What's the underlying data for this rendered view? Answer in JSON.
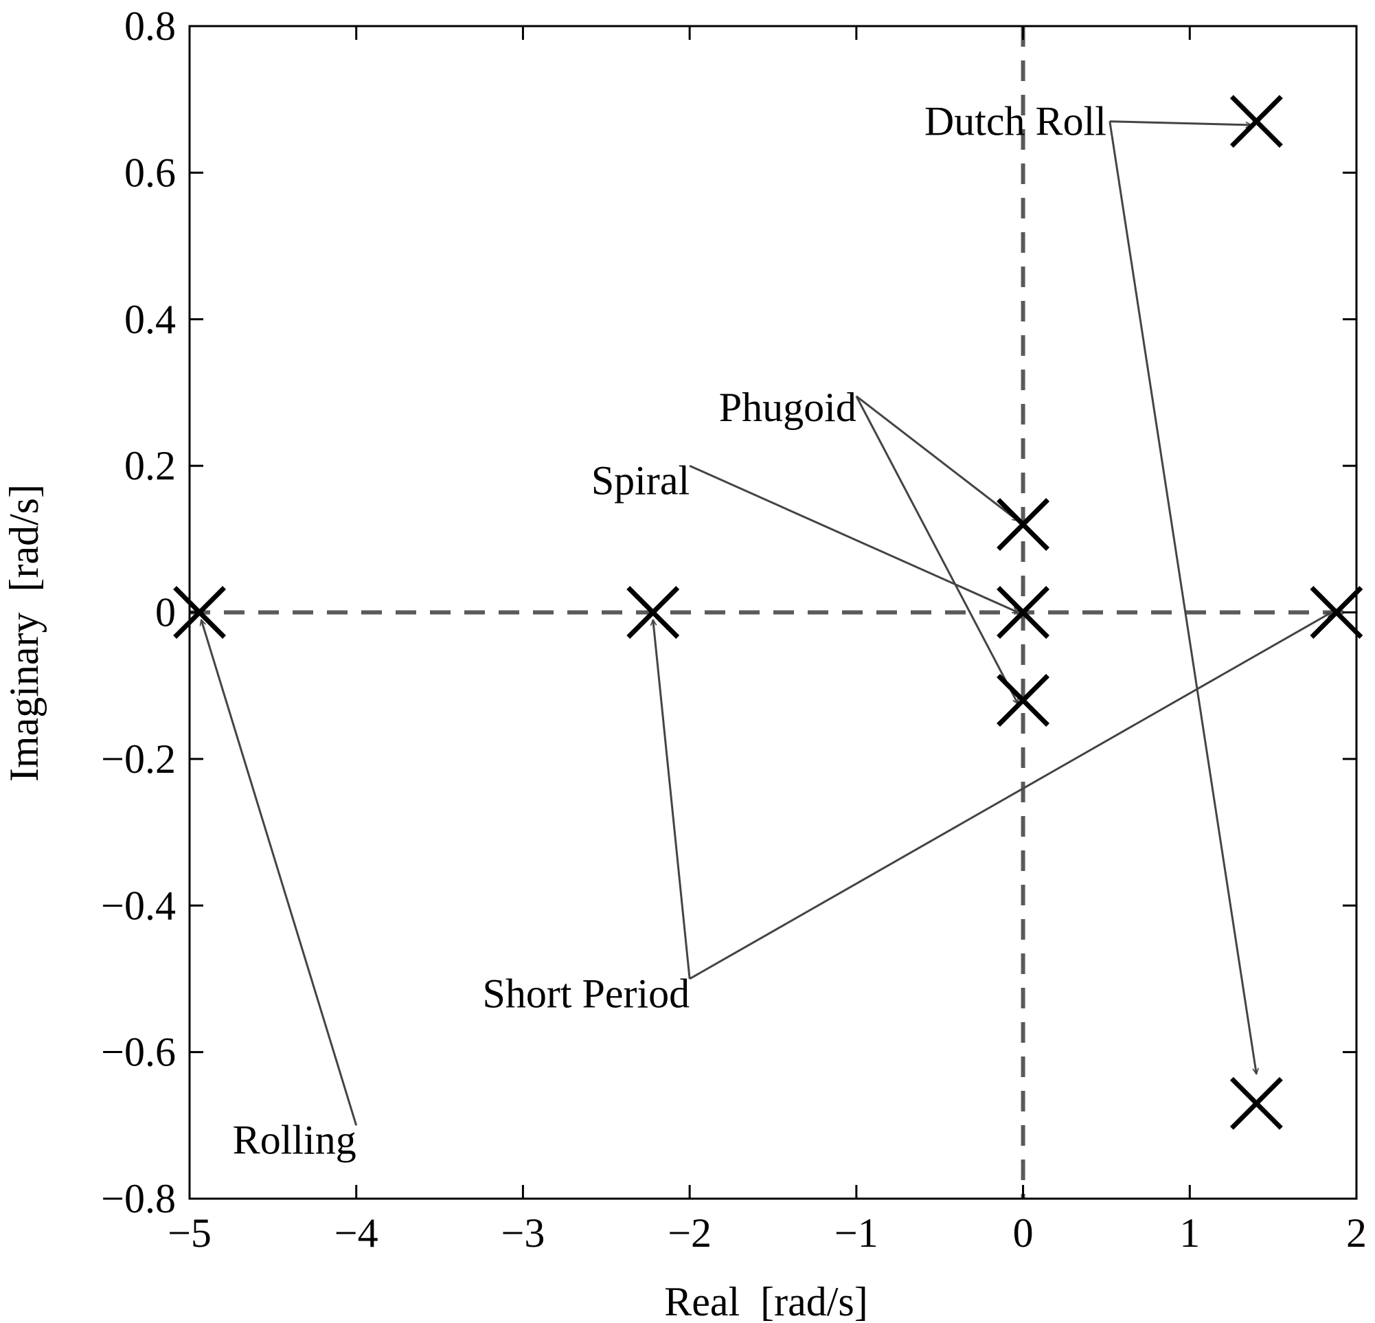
{
  "chart_data": {
    "type": "scatter",
    "xlabel": "Real  [rad/s]",
    "ylabel": "Imaginary  [rad/s]",
    "xlim": [
      -5,
      2
    ],
    "ylim": [
      -0.8,
      0.8
    ],
    "xticks": [
      -5,
      -4,
      -3,
      -2,
      -1,
      0,
      1,
      2
    ],
    "yticks": [
      -0.8,
      -0.6,
      -0.4,
      -0.2,
      0,
      0.2,
      0.4,
      0.6,
      0.8
    ],
    "xtick_labels": [
      "−5",
      "−4",
      "−3",
      "−2",
      "−1",
      "0",
      "1",
      "2"
    ],
    "ytick_labels": [
      "−0.8",
      "−0.6",
      "−0.4",
      "−0.2",
      "0",
      "0.2",
      "0.4",
      "0.6",
      "0.8"
    ],
    "grid": false,
    "reference_lines": [
      {
        "orientation": "horizontal",
        "value": 0,
        "style": "dashed"
      },
      {
        "orientation": "vertical",
        "value": 0,
        "style": "dashed"
      }
    ],
    "marker": "x",
    "points": [
      {
        "x": -4.94,
        "y": 0
      },
      {
        "x": -2.22,
        "y": 0
      },
      {
        "x": 0,
        "y": 0.12
      },
      {
        "x": 0,
        "y": 0
      },
      {
        "x": 0,
        "y": -0.12
      },
      {
        "x": 1.4,
        "y": 0.67
      },
      {
        "x": 1.4,
        "y": -0.67
      },
      {
        "x": 1.88,
        "y": 0
      }
    ],
    "annotations": [
      {
        "text": "Dutch Roll",
        "x": 0.5,
        "y": 0.67,
        "anchor": "end",
        "arrow_from": [
          0.52,
          0.67
        ],
        "arrow_to": [
          [
            1.37,
            0.665
          ],
          [
            1.4,
            -0.63
          ]
        ]
      },
      {
        "text": "Phugoid",
        "x": -1.0,
        "y": 0.28,
        "anchor": "end",
        "arrow_from": [
          -1.0,
          0.295
        ],
        "arrow_to": [
          [
            -0.03,
            0.125
          ],
          [
            -0.03,
            -0.125
          ]
        ]
      },
      {
        "text": "Spiral",
        "x": -2.0,
        "y": 0.18,
        "anchor": "end",
        "arrow_from": [
          -2.0,
          0.2
        ],
        "arrow_to": [
          [
            -0.03,
            0.0
          ]
        ]
      },
      {
        "text": "Short Period",
        "x": -2.0,
        "y": -0.52,
        "anchor": "end",
        "arrow_from": [
          -2.0,
          -0.5
        ],
        "arrow_to": [
          [
            -2.22,
            -0.01
          ],
          [
            1.85,
            0.0
          ]
        ]
      },
      {
        "text": "Rolling",
        "x": -4.0,
        "y": -0.72,
        "anchor": "end",
        "arrow_from": [
          -4.0,
          -0.7
        ],
        "arrow_to": [
          [
            -4.93,
            -0.01
          ]
        ]
      }
    ]
  }
}
